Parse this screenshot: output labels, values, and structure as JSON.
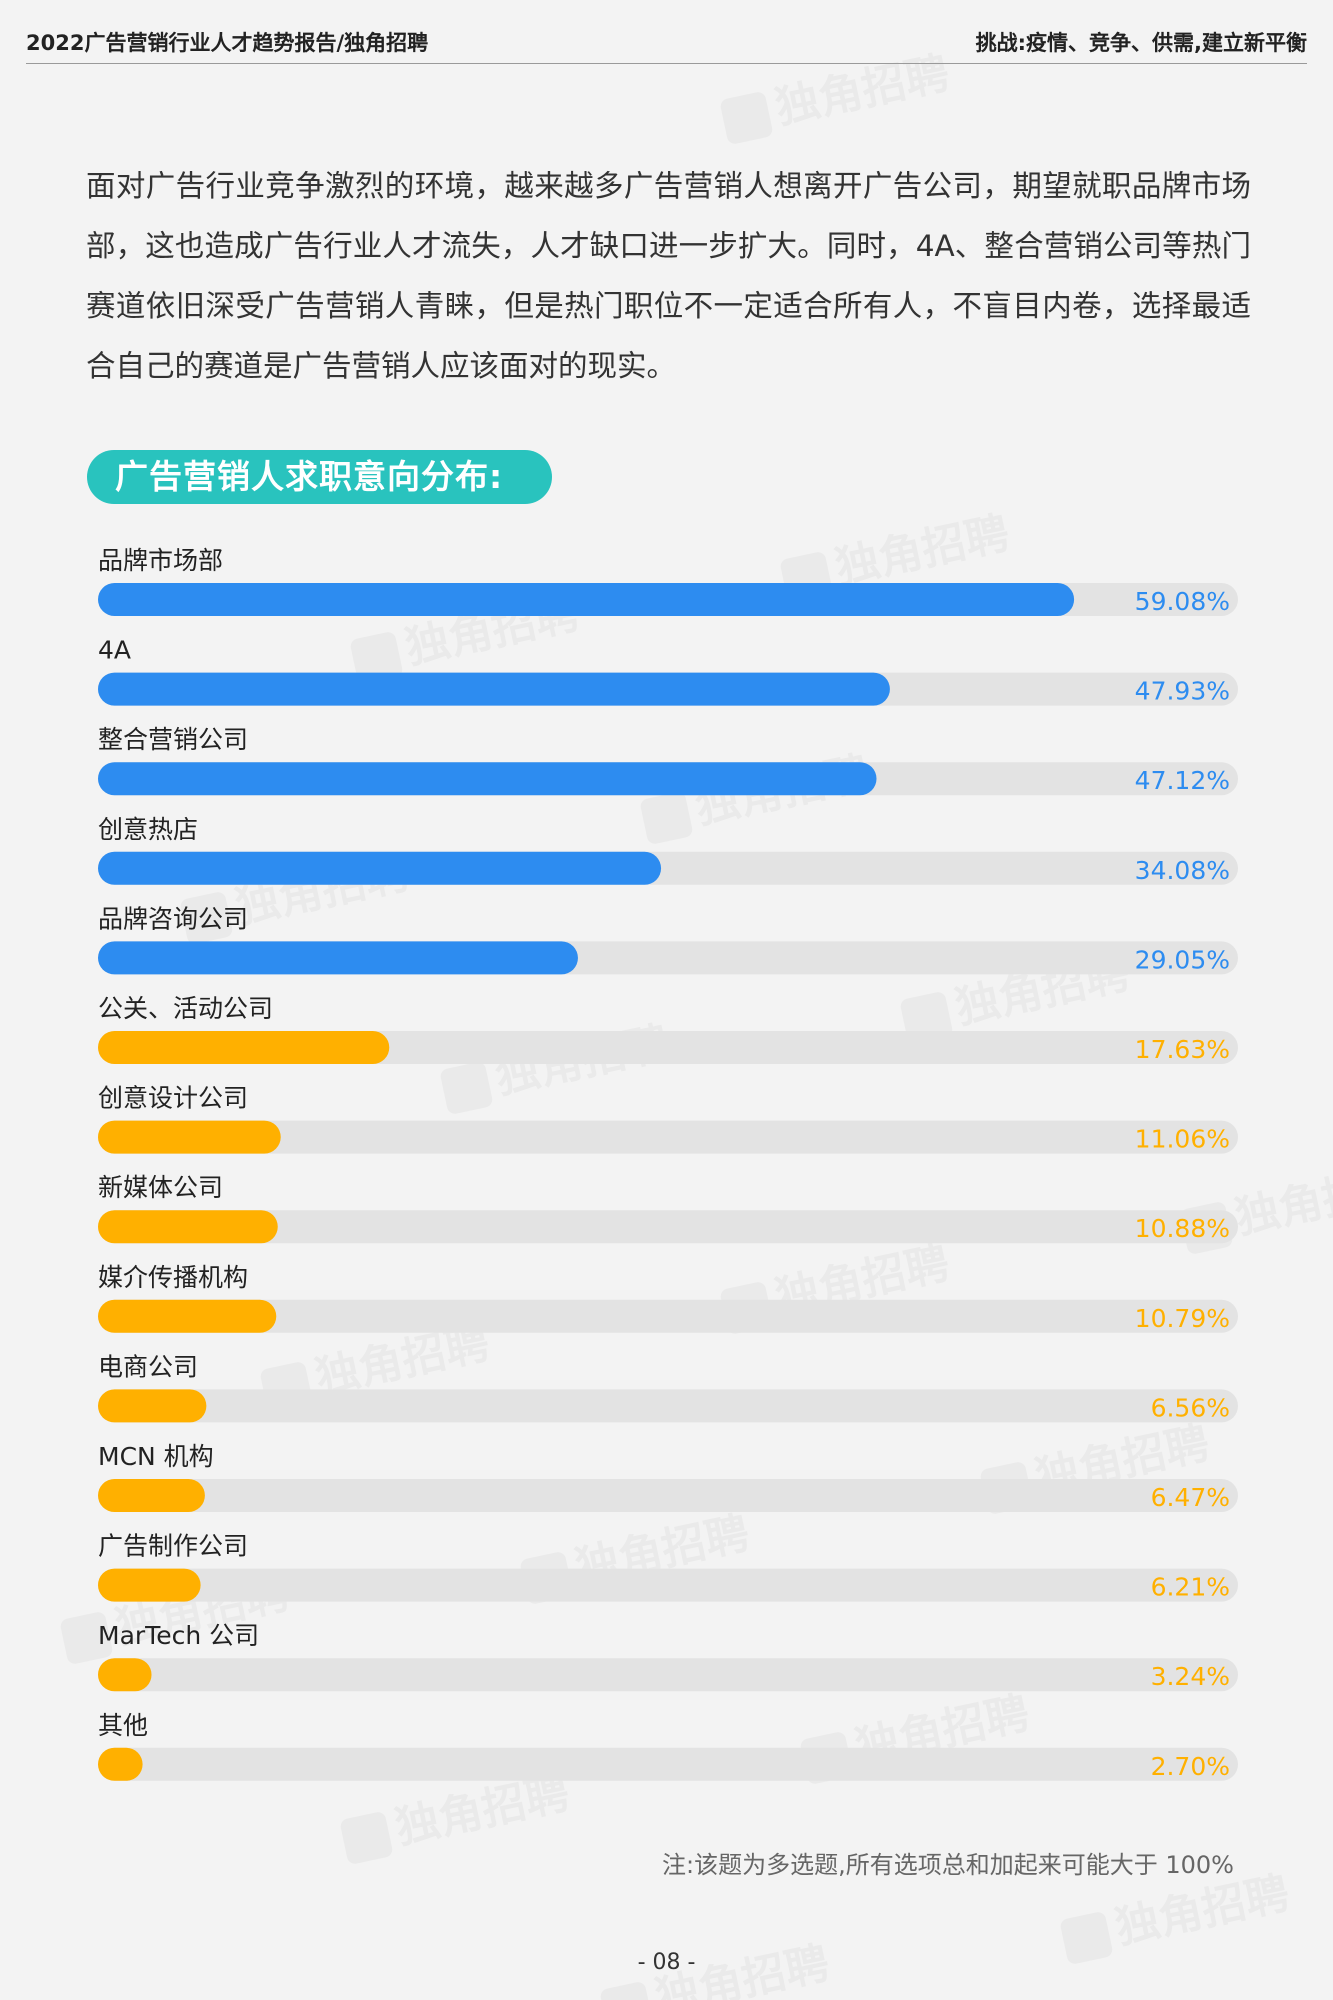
{
  "header": {
    "left": "2022广告营销行业人才趋势报告/独角招聘",
    "right": "挑战:疫情、竞争、供需,建立新平衡"
  },
  "watermark": "独角招聘",
  "intro": "面对广告行业竞争激烈的环境，越来越多广告营销人想离开广告公司，期望就职品牌市场部，这也造成广告行业人才流失，人才缺口进一步扩大。同时，4A、整合营销公司等热门赛道依旧深受广告营销人青睐，但是热门职位不一定适合所有人，不盲目内卷，选择最适合自己的赛道是广告营销人应该面对的现实。",
  "section_title": "广告营销人求职意向分布:",
  "colors": {
    "accent": "#29c3be",
    "blue": "#2d8cf0",
    "orange": "#ffb000",
    "track": "#e3e3e3"
  },
  "chart_data": {
    "type": "bar",
    "orientation": "horizontal",
    "categories": [
      "品牌市场部",
      "4A",
      "整合营销公司",
      "创意热店",
      "品牌咨询公司",
      "公关、活动公司",
      "创意设计公司",
      "新媒体公司",
      "媒介传播机构",
      "电商公司",
      "MCN 机构",
      "广告制作公司",
      "MarTech 公司",
      "其他"
    ],
    "values": [
      59.08,
      47.93,
      47.12,
      34.08,
      29.05,
      17.63,
      11.06,
      10.88,
      10.79,
      6.56,
      6.47,
      6.21,
      3.24,
      2.7
    ],
    "value_labels": [
      "59.08%",
      "47.93%",
      "47.12%",
      "34.08%",
      "29.05%",
      "17.63%",
      "11.06%",
      "10.88%",
      "10.79%",
      "6.56%",
      "6.47%",
      "6.21%",
      "3.24%",
      "2.70%"
    ],
    "highlight_count": 5,
    "xlim": [
      0,
      69
    ],
    "unit": "%"
  },
  "note": "注:该题为多选题,所有选项总和加起来可能大于 100%",
  "page_number": "- 08 -"
}
